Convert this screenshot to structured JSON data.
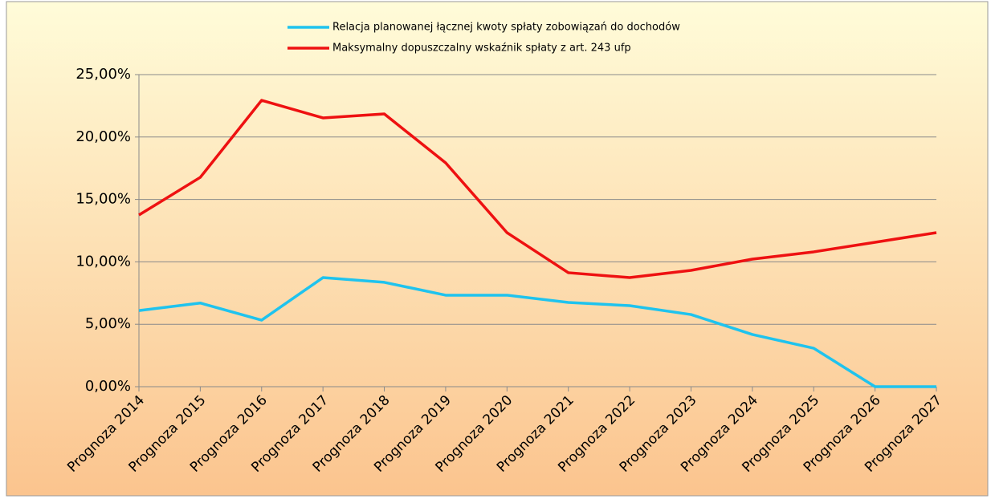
{
  "chart_data": {
    "type": "line",
    "categories": [
      "Prognoza 2014",
      "Prognoza 2015",
      "Prognoza 2016",
      "Prognoza 2017",
      "Prognoza 2018",
      "Prognoza 2019",
      "Prognoza 2020",
      "Prognoza 2021",
      "Prognoza 2022",
      "Prognoza 2023",
      "Prognoza 2024",
      "Prognoza 2025",
      "Prognoza 2026",
      "Prognoza 2027"
    ],
    "series": [
      {
        "name": "Relacja planowanej łącznej kwoty spłaty zobowiązań do dochodów",
        "color": "#1fc3ee",
        "values": [
          6.1,
          6.7,
          5.33,
          8.74,
          8.36,
          7.33,
          7.33,
          6.75,
          6.49,
          5.78,
          4.18,
          3.08,
          0,
          0
        ]
      },
      {
        "name": "Maksymalny dopuszczalny wskaźnik spłaty z art. 243 ufp",
        "color": "#ee1111",
        "values": [
          13.75,
          16.77,
          22.94,
          21.53,
          21.85,
          17.93,
          12.34,
          9.13,
          8.74,
          9.32,
          10.22,
          10.8,
          11.57,
          12.34
        ]
      }
    ],
    "ylim": [
      0,
      25
    ],
    "yticks": [
      {
        "value": 0,
        "label": "0,00%"
      },
      {
        "value": 5,
        "label": "5,00%"
      },
      {
        "value": 10,
        "label": "10,00%"
      },
      {
        "value": 15,
        "label": "15,00%"
      },
      {
        "value": 20,
        "label": "20,00%"
      },
      {
        "value": 25,
        "label": "25,00%"
      }
    ],
    "grid": true,
    "legend": "top"
  }
}
